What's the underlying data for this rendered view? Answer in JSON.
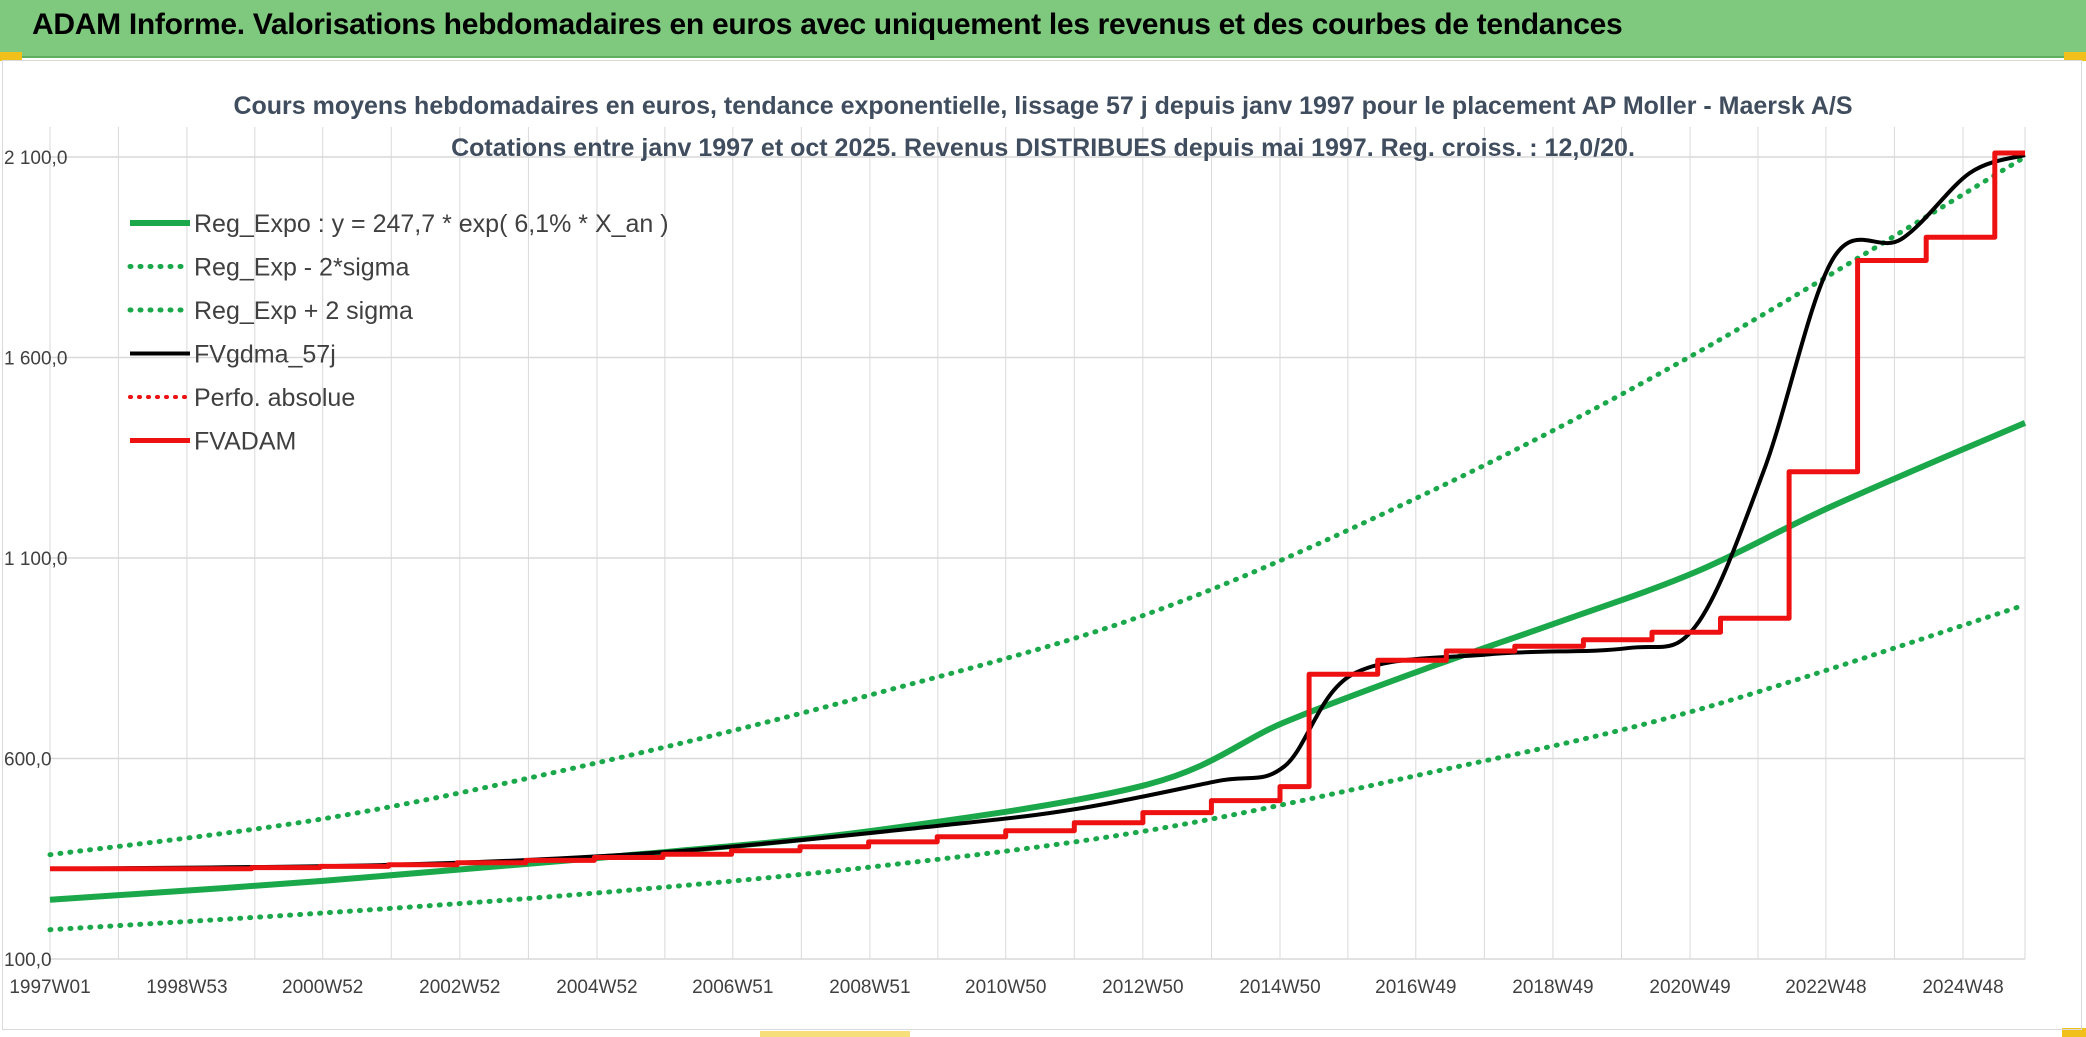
{
  "header": {
    "title": "ADAM Informe. Valorisations hebdomadaires en euros avec uniquement les revenus et des courbes de tendances"
  },
  "colors": {
    "banner": "#7fc97f",
    "trend_green": "#1aa84a",
    "fv_black": "#000000",
    "adam_red": "#ee1111",
    "grid": "#d9d9d9"
  },
  "chart_data": {
    "type": "line",
    "title": "Cours moyens hebdomadaires en euros, tendance exponentielle, lissage 57 j depuis janv 1997 pour le placement AP Moller - Maersk A/S",
    "subtitle": "Cotations entre janv 1997 et oct 2025. Revenus DISTRIBUES depuis mai 1997. Reg. croiss. : 12,0/20.",
    "x_range": [
      "1997W01",
      "2025W43"
    ],
    "x_ticks": [
      "1997W01",
      "1998W53",
      "2000W52",
      "2002W52",
      "2004W52",
      "2006W51",
      "2008W51",
      "2010W50",
      "2012W50",
      "2014W50",
      "2016W49",
      "2018W49",
      "2020W49",
      "2022W48",
      "2024W48"
    ],
    "y_ticks": [
      100,
      600,
      1100,
      1600,
      2100
    ],
    "y_tick_labels": [
      "100,0",
      "600,0",
      "1 100,0",
      "1 600,0",
      "2 100,0"
    ],
    "ylim": [
      100,
      2100
    ],
    "grid": true,
    "legend_position": "top-left",
    "series": [
      {
        "name": "Reg_Expo : y = 247,7 * exp( 6,1% *  X_an )",
        "style": "solid-green",
        "x": [
          "1997W01",
          "2001W01",
          "2005W01",
          "2009W01",
          "2013W01",
          "2015W01",
          "2017W01",
          "2019W01",
          "2021W01",
          "2023W01",
          "2025W43"
        ],
        "y": [
          247.7,
          295,
          352,
          420,
          535,
          690,
          820,
          940,
          1065,
          1230,
          1437
        ]
      },
      {
        "name": "Reg_Exp - 2*sigma",
        "style": "dotted-green",
        "x": [
          "1997W01",
          "2001W01",
          "2005W01",
          "2009W01",
          "2013W01",
          "2017W01",
          "2021W01",
          "2025W43"
        ],
        "y": [
          173,
          215,
          265,
          330,
          420,
          560,
          720,
          983
        ]
      },
      {
        "name": "Reg_Exp + 2 sigma",
        "style": "dotted-green",
        "x": [
          "1997W01",
          "2001W01",
          "2005W01",
          "2009W01",
          "2013W01",
          "2017W01",
          "2021W01",
          "2025W43"
        ],
        "y": [
          360,
          450,
          590,
          760,
          960,
          1255,
          1610,
          2100
        ]
      },
      {
        "name": "FVgdma_57j",
        "style": "solid-black",
        "x": [
          "1997W01",
          "2002W01",
          "2006W01",
          "2010W01",
          "2012W01",
          "2014W01",
          "2015W01",
          "2016W01",
          "2018W01",
          "2020W01",
          "2021W01",
          "2022W01",
          "2023W01",
          "2024W01",
          "2025W01",
          "2025W43"
        ],
        "y": [
          325,
          335,
          367,
          433,
          475,
          543,
          580,
          810,
          860,
          875,
          930,
          1320,
          1845,
          1895,
          2060,
          2105
        ]
      },
      {
        "name": "Perfo. absolue",
        "style": "dotted-red",
        "x": [],
        "y": []
      },
      {
        "name": "FVADAM",
        "style": "step-red",
        "x": [
          "1997W01",
          "1999W50",
          "2000W50",
          "2001W50",
          "2002W50",
          "2003W50",
          "2004W50",
          "2005W50",
          "2006W50",
          "2007W50",
          "2008W50",
          "2009W50",
          "2010W50",
          "2011W50",
          "2012W50",
          "2013W50",
          "2014W50",
          "2015W20",
          "2016W20",
          "2017W20",
          "2018W20",
          "2019W20",
          "2020W20",
          "2021W20",
          "2022W20",
          "2023W20",
          "2024W20",
          "2025W20",
          "2025W43"
        ],
        "y": [
          325,
          328,
          331,
          335,
          340,
          346,
          353,
          361,
          370,
          380,
          392,
          405,
          420,
          440,
          465,
          495,
          530,
          810,
          845,
          868,
          880,
          896,
          915,
          950,
          1315,
          1842,
          1900,
          2110,
          2110
        ]
      }
    ]
  }
}
